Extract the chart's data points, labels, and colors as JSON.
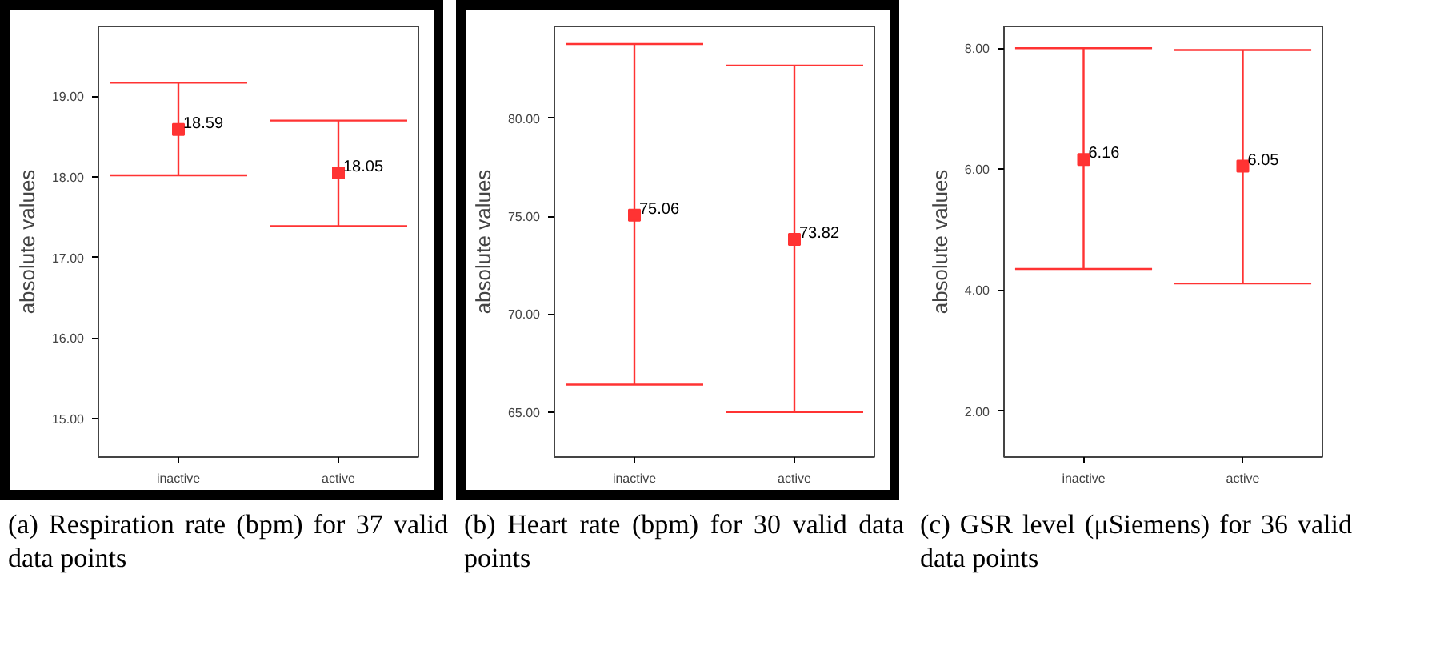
{
  "chart_data": [
    {
      "type": "scatter",
      "categories": [
        "inactive",
        "active"
      ],
      "ylabel": "absolute values",
      "ylim": [
        14.52,
        19.87
      ],
      "yticks": [
        {
          "value": 15,
          "label": "15.00"
        },
        {
          "value": 16,
          "label": "16.00"
        },
        {
          "value": 17,
          "label": "17.00"
        },
        {
          "value": 18,
          "label": "18.00"
        },
        {
          "value": 19,
          "label": "19.00"
        }
      ],
      "grid": false,
      "marker": "square",
      "data_labels": true,
      "series": [
        {
          "color": "#ff3333",
          "values": [
            18.59,
            18.05
          ],
          "errors": [
            [
              18.02,
              19.17
            ],
            [
              17.39,
              18.7
            ]
          ]
        }
      ],
      "annotations": [
        "(a) Respiration rate (bpm) for 37 valid data points"
      ]
    },
    {
      "type": "scatter",
      "categories": [
        "inactive",
        "active"
      ],
      "ylabel": "absolute values",
      "ylim": [
        62.7,
        84.7
      ],
      "yticks": [
        {
          "value": 65,
          "label": "65.00"
        },
        {
          "value": 70,
          "label": "70.00"
        },
        {
          "value": 75,
          "label": "75.00"
        },
        {
          "value": 80,
          "label": "80.00"
        }
      ],
      "grid": false,
      "marker": "square",
      "data_labels": true,
      "series": [
        {
          "color": "#ff3333",
          "values": [
            75.06,
            73.82
          ],
          "errors": [
            [
              66.4,
              83.8
            ],
            [
              65.0,
              82.7
            ]
          ]
        }
      ],
      "annotations": [
        "(b) Heart rate (bpm) for 30 valid data points"
      ]
    },
    {
      "type": "scatter",
      "categories": [
        "inactive",
        "active"
      ],
      "ylabel": "absolute values",
      "ylim": [
        1.24,
        8.36
      ],
      "yticks": [
        {
          "value": 2,
          "label": "2.00"
        },
        {
          "value": 4,
          "label": "4.00"
        },
        {
          "value": 6,
          "label": "6.00"
        },
        {
          "value": 8,
          "label": "8.00"
        }
      ],
      "grid": false,
      "marker": "square",
      "data_labels": true,
      "series": [
        {
          "color": "#ff3333",
          "values": [
            6.16,
            6.05
          ],
          "errors": [
            [
              4.35,
              8.0
            ],
            [
              4.11,
              7.97
            ]
          ]
        }
      ],
      "annotations": [
        "(c) GSR level (μSiemens) for 36 valid data points"
      ]
    }
  ]
}
